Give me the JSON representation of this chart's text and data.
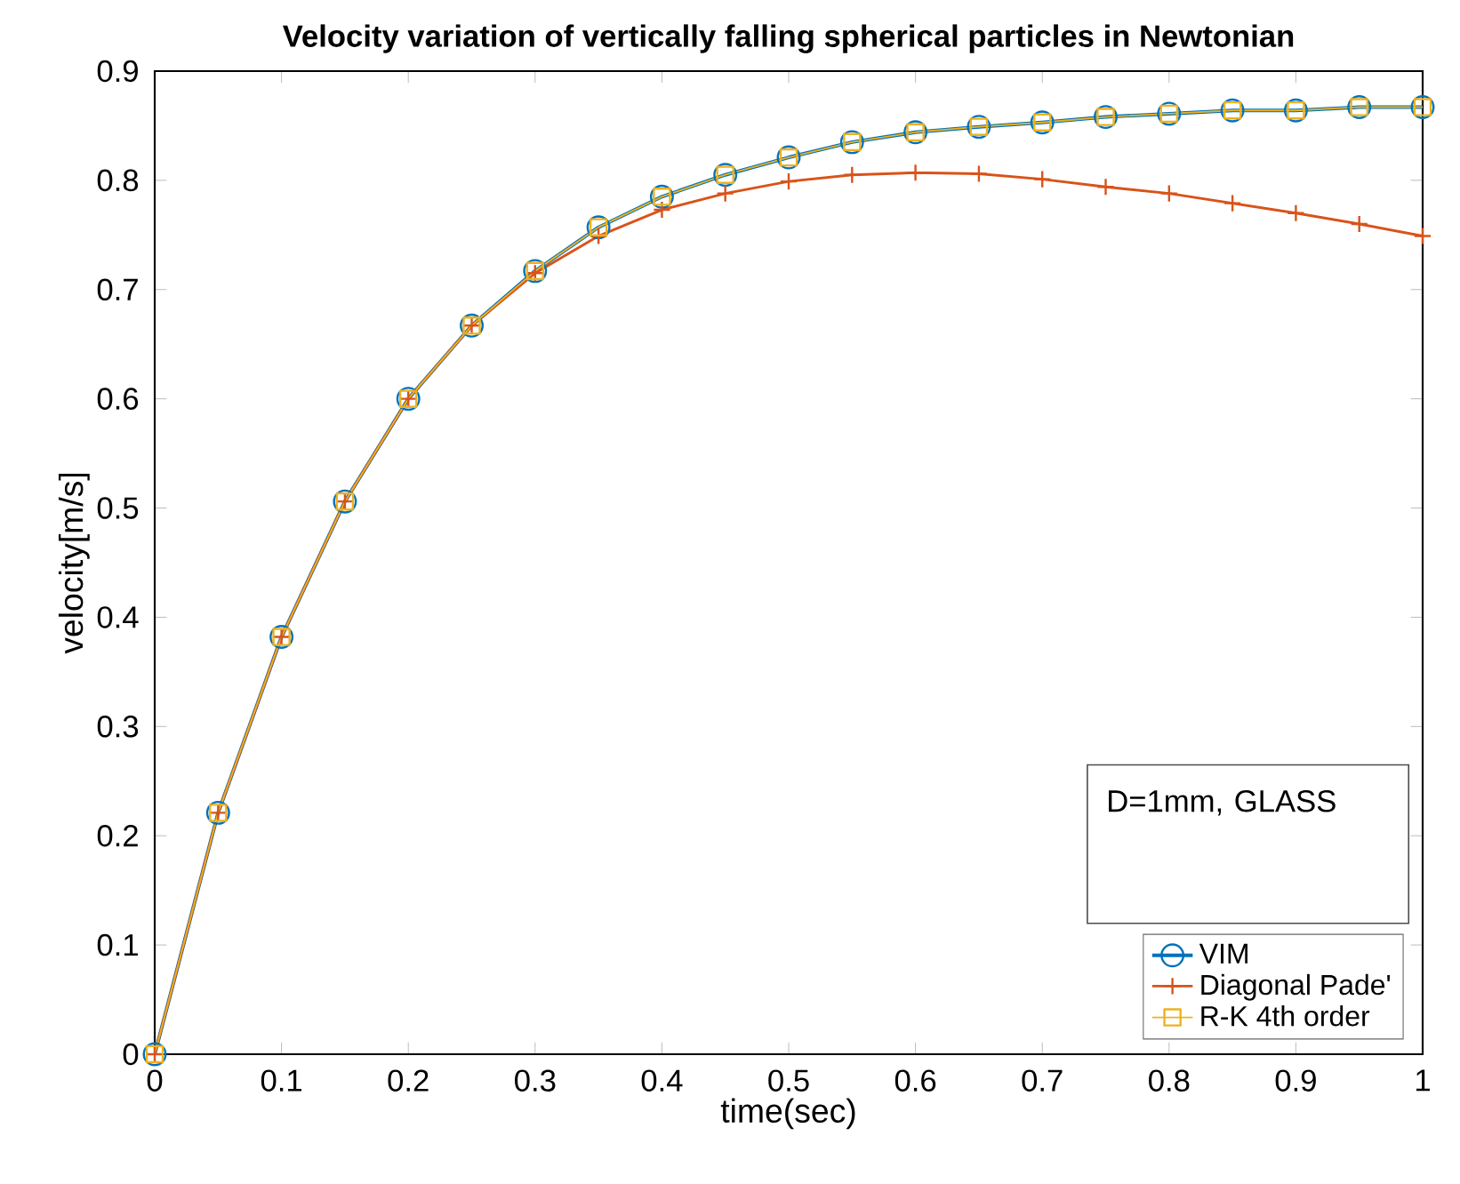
{
  "chart_data": {
    "type": "line",
    "title": "Velocity variation of vertically falling spherical particles in Newtonian",
    "xlabel": "time(sec)",
    "ylabel": "velocity[m/s]",
    "x": [
      0,
      0.05,
      0.1,
      0.15,
      0.2,
      0.25,
      0.3,
      0.35,
      0.4,
      0.45,
      0.5,
      0.55,
      0.6,
      0.65,
      0.7,
      0.75,
      0.8,
      0.85,
      0.9,
      0.95,
      1.0
    ],
    "series": [
      {
        "name": "VIM",
        "color": "#0072bd",
        "marker": "circle",
        "values": [
          0,
          0.221,
          0.382,
          0.506,
          0.6,
          0.667,
          0.717,
          0.757,
          0.785,
          0.805,
          0.821,
          0.835,
          0.844,
          0.849,
          0.853,
          0.858,
          0.861,
          0.864,
          0.864,
          0.867,
          0.867
        ]
      },
      {
        "name": "Diagonal Pade'",
        "color": "#d95319",
        "marker": "cross",
        "values": [
          0,
          0.221,
          0.382,
          0.506,
          0.6,
          0.667,
          0.715,
          0.749,
          0.773,
          0.788,
          0.799,
          0.805,
          0.807,
          0.806,
          0.801,
          0.794,
          0.788,
          0.779,
          0.77,
          0.76,
          0.749
        ]
      },
      {
        "name": "R-K 4th order",
        "color": "#edb120",
        "marker": "square",
        "values": [
          0,
          0.221,
          0.382,
          0.506,
          0.6,
          0.667,
          0.717,
          0.757,
          0.785,
          0.805,
          0.821,
          0.835,
          0.844,
          0.849,
          0.853,
          0.858,
          0.861,
          0.864,
          0.864,
          0.867,
          0.867
        ]
      }
    ],
    "xlim": [
      0,
      1
    ],
    "ylim": [
      0,
      0.9
    ],
    "xticks": [
      0,
      0.1,
      0.2,
      0.3,
      0.4,
      0.5,
      0.6,
      0.7,
      0.8,
      0.9,
      1
    ],
    "yticks": [
      0,
      0.1,
      0.2,
      0.3,
      0.4,
      0.5,
      0.6,
      0.7,
      0.8,
      0.9
    ],
    "annotations": [
      "D=1mm, GLASS"
    ],
    "legend": "bottom right",
    "grid": false,
    "line_style": "solid"
  }
}
